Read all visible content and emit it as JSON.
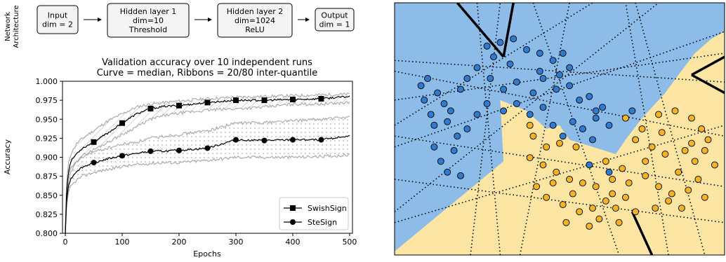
{
  "architecture": {
    "side_label_line1": "Network",
    "side_label_line2": "Architecture",
    "boxes": [
      {
        "lines": [
          "Input",
          "dim = 2"
        ]
      },
      {
        "lines": [
          "Hidden layer 1",
          "dim=10",
          "Threshold"
        ]
      },
      {
        "lines": [
          "Hidden layer 2",
          "dim=1024",
          "ReLU"
        ]
      },
      {
        "lines": [
          "Output",
          "dim = 1"
        ]
      }
    ]
  },
  "chart_data": [
    {
      "type": "line",
      "title": "Validation accuracy over 10 independent runs",
      "subtitle": "Curve = median, Ribbons = 20/80 inter-quantile",
      "xlabel": "Epochs",
      "ylabel": "Accuracy",
      "xlim": [
        -5,
        505
      ],
      "ylim": [
        0.8,
        1.0
      ],
      "xticks": [
        "0",
        "100",
        "200",
        "300",
        "400",
        "500"
      ],
      "yticks": [
        "0.800",
        "0.825",
        "0.850",
        "0.875",
        "0.900",
        "0.925",
        "0.950",
        "0.975",
        "1.000"
      ],
      "legend_position": "bottom-right",
      "series": [
        {
          "name": "SwishSign",
          "marker": "square",
          "x": [
            0,
            2,
            5,
            10,
            20,
            30,
            50,
            75,
            100,
            125,
            150,
            175,
            200,
            250,
            300,
            350,
            400,
            450,
            500
          ],
          "median": [
            0.8,
            0.85,
            0.88,
            0.895,
            0.905,
            0.912,
            0.92,
            0.932,
            0.945,
            0.957,
            0.964,
            0.967,
            0.968,
            0.972,
            0.975,
            0.975,
            0.976,
            0.977,
            0.98
          ],
          "p20": [
            0.8,
            0.84,
            0.868,
            0.88,
            0.895,
            0.902,
            0.91,
            0.92,
            0.93,
            0.94,
            0.95,
            0.955,
            0.958,
            0.962,
            0.964,
            0.966,
            0.97,
            0.97,
            0.972
          ],
          "p80": [
            0.8,
            0.862,
            0.89,
            0.905,
            0.918,
            0.925,
            0.935,
            0.948,
            0.957,
            0.966,
            0.97,
            0.972,
            0.974,
            0.977,
            0.979,
            0.98,
            0.981,
            0.982,
            0.983
          ],
          "markers_at": [
            50,
            100,
            150,
            200,
            250,
            300,
            350,
            400,
            450
          ]
        },
        {
          "name": "SteSign",
          "marker": "circle",
          "x": [
            0,
            2,
            5,
            10,
            20,
            30,
            50,
            75,
            100,
            125,
            150,
            175,
            200,
            250,
            300,
            350,
            400,
            450,
            500
          ],
          "median": [
            0.8,
            0.84,
            0.862,
            0.872,
            0.882,
            0.887,
            0.893,
            0.898,
            0.902,
            0.905,
            0.908,
            0.908,
            0.909,
            0.912,
            0.923,
            0.922,
            0.923,
            0.923,
            0.928
          ],
          "p20": [
            0.8,
            0.83,
            0.852,
            0.862,
            0.87,
            0.875,
            0.88,
            0.884,
            0.888,
            0.89,
            0.892,
            0.893,
            0.893,
            0.896,
            0.9,
            0.9,
            0.9,
            0.901,
            0.903
          ],
          "p80": [
            0.8,
            0.852,
            0.875,
            0.885,
            0.895,
            0.9,
            0.907,
            0.912,
            0.917,
            0.92,
            0.925,
            0.928,
            0.93,
            0.935,
            0.945,
            0.946,
            0.948,
            0.95,
            0.953
          ],
          "markers_at": [
            50,
            100,
            150,
            200,
            250,
            300,
            350,
            400,
            450
          ]
        }
      ]
    },
    {
      "type": "scatter",
      "title": "",
      "xlim": [
        0,
        10
      ],
      "ylim": [
        0,
        7
      ],
      "colors": {
        "class0_region": "#8dbce8",
        "class1_region": "#fde6a4",
        "class0_point": "#2e7bd0",
        "class1_point": "#f5b324"
      },
      "class_0_points": [
        [
          2.8,
          5.8
        ],
        [
          3.0,
          5.5
        ],
        [
          3.2,
          5.9
        ],
        [
          3.6,
          6.0
        ],
        [
          4.0,
          5.7
        ],
        [
          4.4,
          5.6
        ],
        [
          4.8,
          5.4
        ],
        [
          5.1,
          5.6
        ],
        [
          5.3,
          5.2
        ],
        [
          2.5,
          5.2
        ],
        [
          2.2,
          4.9
        ],
        [
          2.9,
          4.9
        ],
        [
          3.3,
          4.6
        ],
        [
          3.7,
          4.8
        ],
        [
          4.2,
          4.5
        ],
        [
          4.5,
          4.9
        ],
        [
          4.9,
          4.6
        ],
        [
          5.3,
          4.7
        ],
        [
          5.6,
          4.3
        ],
        [
          5.9,
          4.4
        ],
        [
          6.1,
          4.0
        ],
        [
          6.3,
          4.1
        ],
        [
          0.8,
          4.7
        ],
        [
          1.0,
          4.9
        ],
        [
          1.3,
          4.5
        ],
        [
          0.9,
          4.3
        ],
        [
          1.1,
          3.9
        ],
        [
          1.5,
          4.2
        ],
        [
          1.7,
          4.0
        ],
        [
          1.2,
          3.6
        ],
        [
          1.6,
          3.7
        ],
        [
          1.9,
          3.3
        ],
        [
          1.8,
          2.9
        ],
        [
          1.4,
          2.6
        ],
        [
          1.2,
          3.0
        ],
        [
          2.2,
          3.5
        ],
        [
          2.5,
          3.9
        ],
        [
          2.8,
          4.2
        ],
        [
          3.3,
          4.0
        ],
        [
          3.7,
          4.2
        ],
        [
          4.1,
          3.9
        ],
        [
          4.5,
          4.1
        ],
        [
          4.8,
          3.6
        ],
        [
          5.1,
          3.3
        ],
        [
          5.4,
          3.7
        ],
        [
          5.7,
          3.5
        ],
        [
          6.0,
          3.2
        ],
        [
          6.5,
          3.6
        ],
        [
          1.6,
          2.3
        ],
        [
          2.0,
          2.2
        ],
        [
          4.4,
          5.1
        ],
        [
          5.0,
          5.0
        ],
        [
          3.5,
          5.3
        ],
        [
          2.0,
          4.6
        ],
        [
          7.2,
          4.0
        ],
        [
          5.9,
          2.5
        ],
        [
          6.5,
          2.3
        ],
        [
          6.1,
          3.8
        ]
      ],
      "class_1_points": [
        [
          7.0,
          3.8
        ],
        [
          7.5,
          3.5
        ],
        [
          8.0,
          3.9
        ],
        [
          8.5,
          4.0
        ],
        [
          9.0,
          3.8
        ],
        [
          9.3,
          3.5
        ],
        [
          9.5,
          3.2
        ],
        [
          7.3,
          3.2
        ],
        [
          7.8,
          3.0
        ],
        [
          8.2,
          2.8
        ],
        [
          8.8,
          2.9
        ],
        [
          9.1,
          2.6
        ],
        [
          9.4,
          2.9
        ],
        [
          9.7,
          2.5
        ],
        [
          4.2,
          3.3
        ],
        [
          4.6,
          3.0
        ],
        [
          5.0,
          3.1
        ],
        [
          5.5,
          3.0
        ],
        [
          4.1,
          2.7
        ],
        [
          4.5,
          2.5
        ],
        [
          4.9,
          2.3
        ],
        [
          5.3,
          2.1
        ],
        [
          5.7,
          2.0
        ],
        [
          6.1,
          1.9
        ],
        [
          6.6,
          2.1
        ],
        [
          6.9,
          2.4
        ],
        [
          7.1,
          2.0
        ],
        [
          7.6,
          2.2
        ],
        [
          8.0,
          1.9
        ],
        [
          8.4,
          1.7
        ],
        [
          8.9,
          1.8
        ],
        [
          9.2,
          2.1
        ],
        [
          9.4,
          1.6
        ],
        [
          7.0,
          1.6
        ],
        [
          6.4,
          1.5
        ],
        [
          6.0,
          1.3
        ],
        [
          5.6,
          1.2
        ],
        [
          5.1,
          1.4
        ],
        [
          4.6,
          1.6
        ],
        [
          4.3,
          1.9
        ],
        [
          6.2,
          1.0
        ],
        [
          6.8,
          0.9
        ],
        [
          5.9,
          0.8
        ],
        [
          7.3,
          1.2
        ],
        [
          8.3,
          1.5
        ],
        [
          5.2,
          0.9
        ],
        [
          4.8,
          2.0
        ],
        [
          6.6,
          1.7
        ],
        [
          7.6,
          2.6
        ],
        [
          8.6,
          2.3
        ],
        [
          9.0,
          3.1
        ],
        [
          8.1,
          3.4
        ],
        [
          5.4,
          1.7
        ],
        [
          4.1,
          3.6
        ],
        [
          6.7,
          1.3
        ],
        [
          7.9,
          1.3
        ],
        [
          8.7,
          1.3
        ],
        [
          6.4,
          2.6
        ]
      ]
    }
  ]
}
